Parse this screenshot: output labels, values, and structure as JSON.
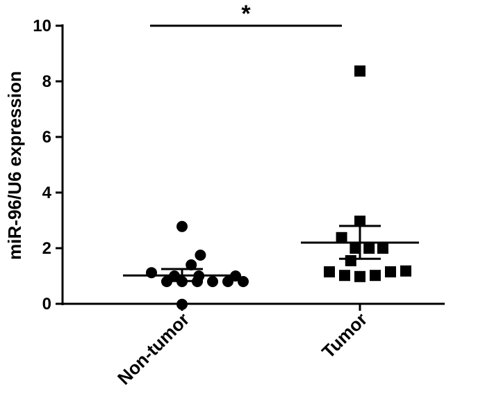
{
  "chart_data": {
    "type": "scatter",
    "title": "",
    "xlabel": "",
    "ylabel": "miR-96/U6 expression",
    "ylim": [
      0,
      10
    ],
    "yticks": [
      "0",
      "2",
      "4",
      "6",
      "8",
      "10"
    ],
    "grid": false,
    "categories": [
      "Non-tumor",
      "Tumor"
    ],
    "series": [
      {
        "category": "Non-tumor",
        "marker": "circle",
        "points": [
          {
            "offset": -2,
            "y": 1.12
          },
          {
            "offset": -1,
            "y": 0.8
          },
          {
            "offset": 0,
            "y": 0.8
          },
          {
            "offset": 1,
            "y": 0.8
          },
          {
            "offset": 2,
            "y": 0.8
          },
          {
            "offset": 3,
            "y": 0.8
          },
          {
            "offset": 4,
            "y": 0.8
          },
          {
            "offset": -0.5,
            "y": 1.0
          },
          {
            "offset": 1.1,
            "y": 1.0
          },
          {
            "offset": 0.6,
            "y": 1.4
          },
          {
            "offset": 1.2,
            "y": 1.75
          },
          {
            "offset": 0,
            "y": 2.78
          },
          {
            "offset": 0,
            "y": -0.02
          },
          {
            "offset": 3.5,
            "y": 1.0
          }
        ],
        "mean": 1.02,
        "sem_upper": 1.25,
        "sem_lower": 0.82
      },
      {
        "category": "Tumor",
        "marker": "square",
        "points": [
          {
            "offset": -2,
            "y": 1.15
          },
          {
            "offset": -1,
            "y": 1.02
          },
          {
            "offset": 0,
            "y": 0.98
          },
          {
            "offset": 1,
            "y": 1.02
          },
          {
            "offset": 2,
            "y": 1.15
          },
          {
            "offset": 3,
            "y": 1.18
          },
          {
            "offset": -1.2,
            "y": 2.38
          },
          {
            "offset": -0.3,
            "y": 2.0
          },
          {
            "offset": 0.6,
            "y": 2.0
          },
          {
            "offset": 1.5,
            "y": 2.0
          },
          {
            "offset": 0,
            "y": 2.97
          },
          {
            "offset": 0,
            "y": 8.37
          },
          {
            "offset": -0.6,
            "y": 1.55
          }
        ],
        "mean": 2.2,
        "sem_upper": 2.8,
        "sem_lower": 1.62
      }
    ],
    "annotations": [
      {
        "type": "significance",
        "text": "*",
        "from": "Non-tumor",
        "to": "Tumor",
        "y": 10.0
      }
    ]
  }
}
